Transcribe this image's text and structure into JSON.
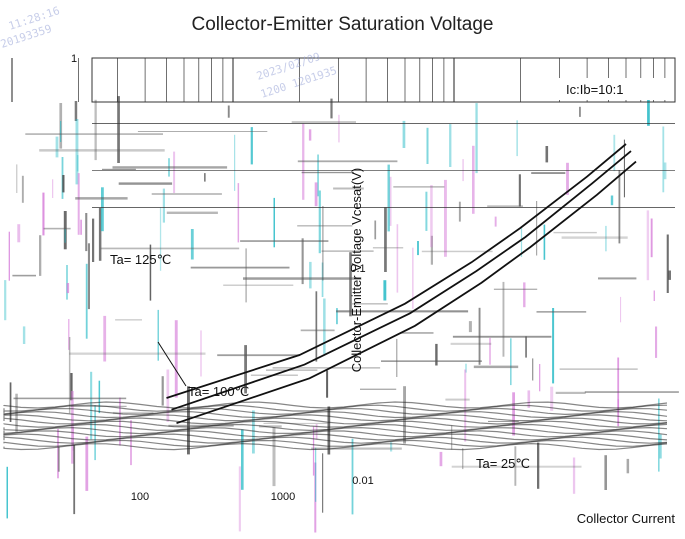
{
  "chart_data": {
    "type": "line",
    "title": "Collector-Emitter Saturation Voltage",
    "xlabel": "Collector Current",
    "ylabel": "Collector-Emitter Voltage  Vcesat(V)",
    "x_scale": "log",
    "y_scale": "log",
    "xlim": [
      1,
      1000
    ],
    "ylim": [
      0.01,
      1
    ],
    "x_ticks": [
      "100",
      "1000"
    ],
    "y_ticks": [
      "1",
      "0.1",
      "0.01"
    ],
    "legend_text": "Ic:Ib=10:1",
    "series": [
      {
        "name": "Ta= 125℃",
        "x": [
          5,
          20,
          60,
          120,
          200,
          400,
          600
        ],
        "y": [
          0.025,
          0.04,
          0.07,
          0.11,
          0.16,
          0.28,
          0.4
        ]
      },
      {
        "name": "Ta= 100℃",
        "x": [
          5,
          20,
          60,
          120,
          200,
          400,
          600
        ],
        "y": [
          0.022,
          0.036,
          0.063,
          0.1,
          0.145,
          0.26,
          0.37
        ]
      },
      {
        "name": "Ta= 25℃",
        "x": [
          5,
          20,
          60,
          120,
          200,
          400,
          600
        ],
        "y": [
          0.019,
          0.031,
          0.055,
          0.088,
          0.13,
          0.23,
          0.33
        ]
      }
    ],
    "grid": true
  },
  "watermark": [
    "11:28:16",
    "20193359",
    "2023/02/09",
    "1200 1201935"
  ],
  "colors": {
    "curve": "#111111",
    "grid": "#333333",
    "noise": [
      "#1fb8c4",
      "#d57ad8",
      "#444444"
    ]
  }
}
